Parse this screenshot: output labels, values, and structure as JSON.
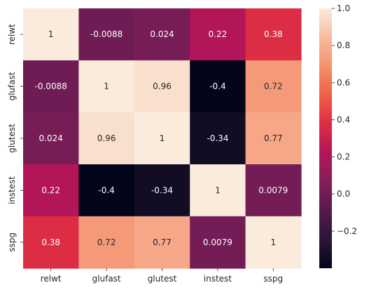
{
  "chart_data": {
    "type": "heatmap",
    "title": "",
    "xlabel": "",
    "ylabel": "",
    "x_categories": [
      "relwt",
      "glufast",
      "glutest",
      "instest",
      "sspg"
    ],
    "y_categories": [
      "relwt",
      "glufast",
      "glutest",
      "instest",
      "sspg"
    ],
    "values": [
      [
        1,
        -0.0088,
        0.024,
        0.22,
        0.38
      ],
      [
        -0.0088,
        1,
        0.96,
        -0.4,
        0.72
      ],
      [
        0.024,
        0.96,
        1,
        -0.34,
        0.77
      ],
      [
        0.22,
        -0.4,
        -0.34,
        1,
        0.0079
      ],
      [
        0.38,
        0.72,
        0.77,
        0.0079,
        1
      ]
    ],
    "cell_labels": [
      [
        "1",
        "-0.0088",
        "0.024",
        "0.22",
        "0.38"
      ],
      [
        "-0.0088",
        "1",
        "0.96",
        "-0.4",
        "0.72"
      ],
      [
        "0.024",
        "0.96",
        "1",
        "-0.34",
        "0.77"
      ],
      [
        "0.22",
        "-0.4",
        "-0.34",
        "1",
        "0.0079"
      ],
      [
        "0.38",
        "0.72",
        "0.77",
        "0.0079",
        "1"
      ]
    ],
    "colormap": "rocket",
    "colorbar": {
      "range": [
        -0.4,
        1.0
      ],
      "ticks": [
        -0.2,
        0.0,
        0.2,
        0.4,
        0.6,
        0.8,
        1.0
      ],
      "tick_labels": [
        "−0.2",
        "0.0",
        "0.2",
        "0.4",
        "0.6",
        "0.8",
        "1.0"
      ],
      "placement": "right"
    },
    "colorbar_stops": [
      "#03051a",
      "#2a1636",
      "#561a4c",
      "#841e5a",
      "#b41658",
      "#dd2c45",
      "#f06043",
      "#f5916e",
      "#f6bc9f",
      "#faebdd"
    ]
  }
}
